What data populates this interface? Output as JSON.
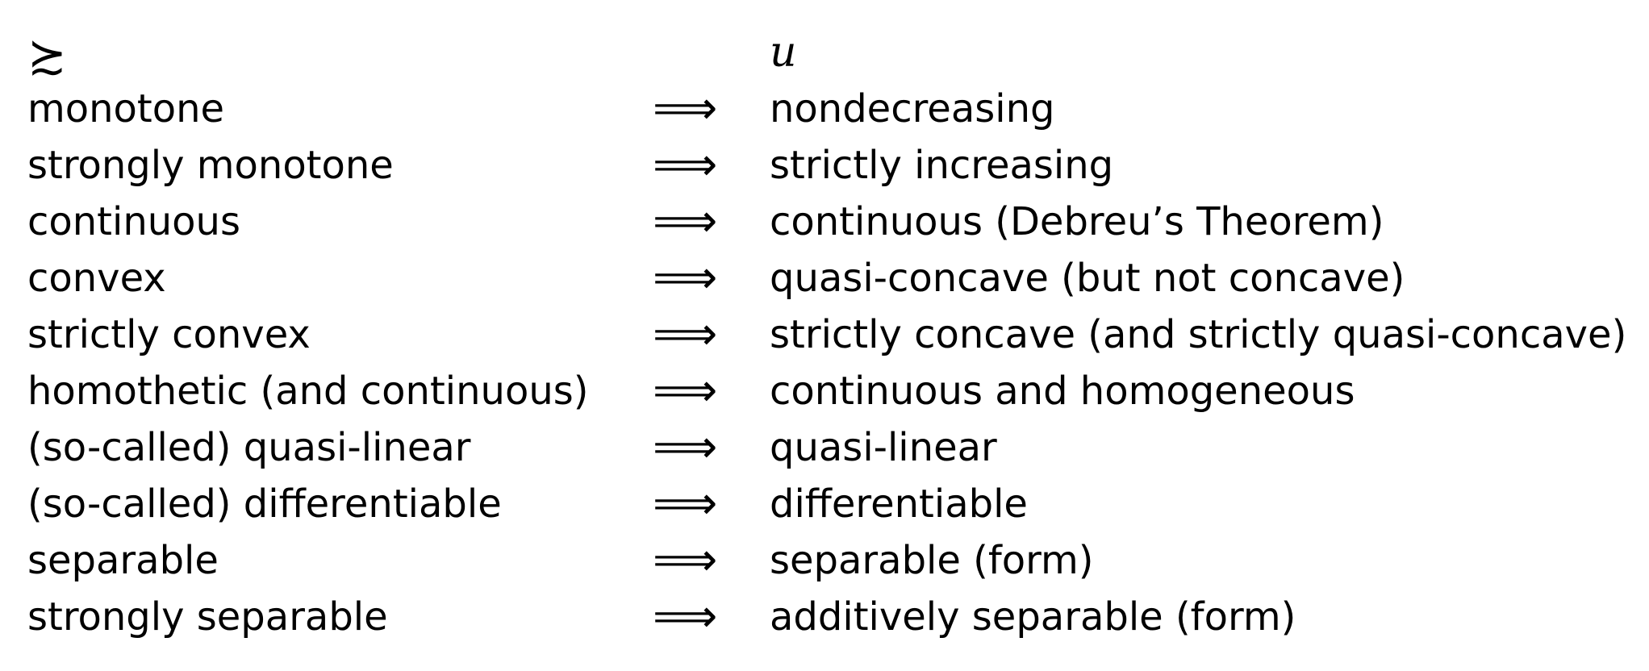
{
  "header": {
    "left_symbol": "≿",
    "right_symbol": "u"
  },
  "arrow_symbol": "⟹",
  "rows": [
    {
      "left": "monotone",
      "right": "nondecreasing"
    },
    {
      "left": "strongly monotone",
      "right": "strictly increasing"
    },
    {
      "left": "continuous",
      "right": "continuous (Debreu’s Theorem)"
    },
    {
      "left": "convex",
      "right": "quasi-concave (but not concave)"
    },
    {
      "left": "strictly convex",
      "right": "strictly concave (and strictly quasi-concave)"
    },
    {
      "left": "homothetic (and continuous)",
      "right": "continuous and homogeneous"
    },
    {
      "left": "(so-called) quasi-linear",
      "right": "quasi-linear"
    },
    {
      "left": "(so-called) differentiable",
      "right": "differentiable"
    },
    {
      "left": "separable",
      "right": "separable (form)"
    },
    {
      "left": "strongly separable",
      "right": "additively separable (form)"
    }
  ]
}
